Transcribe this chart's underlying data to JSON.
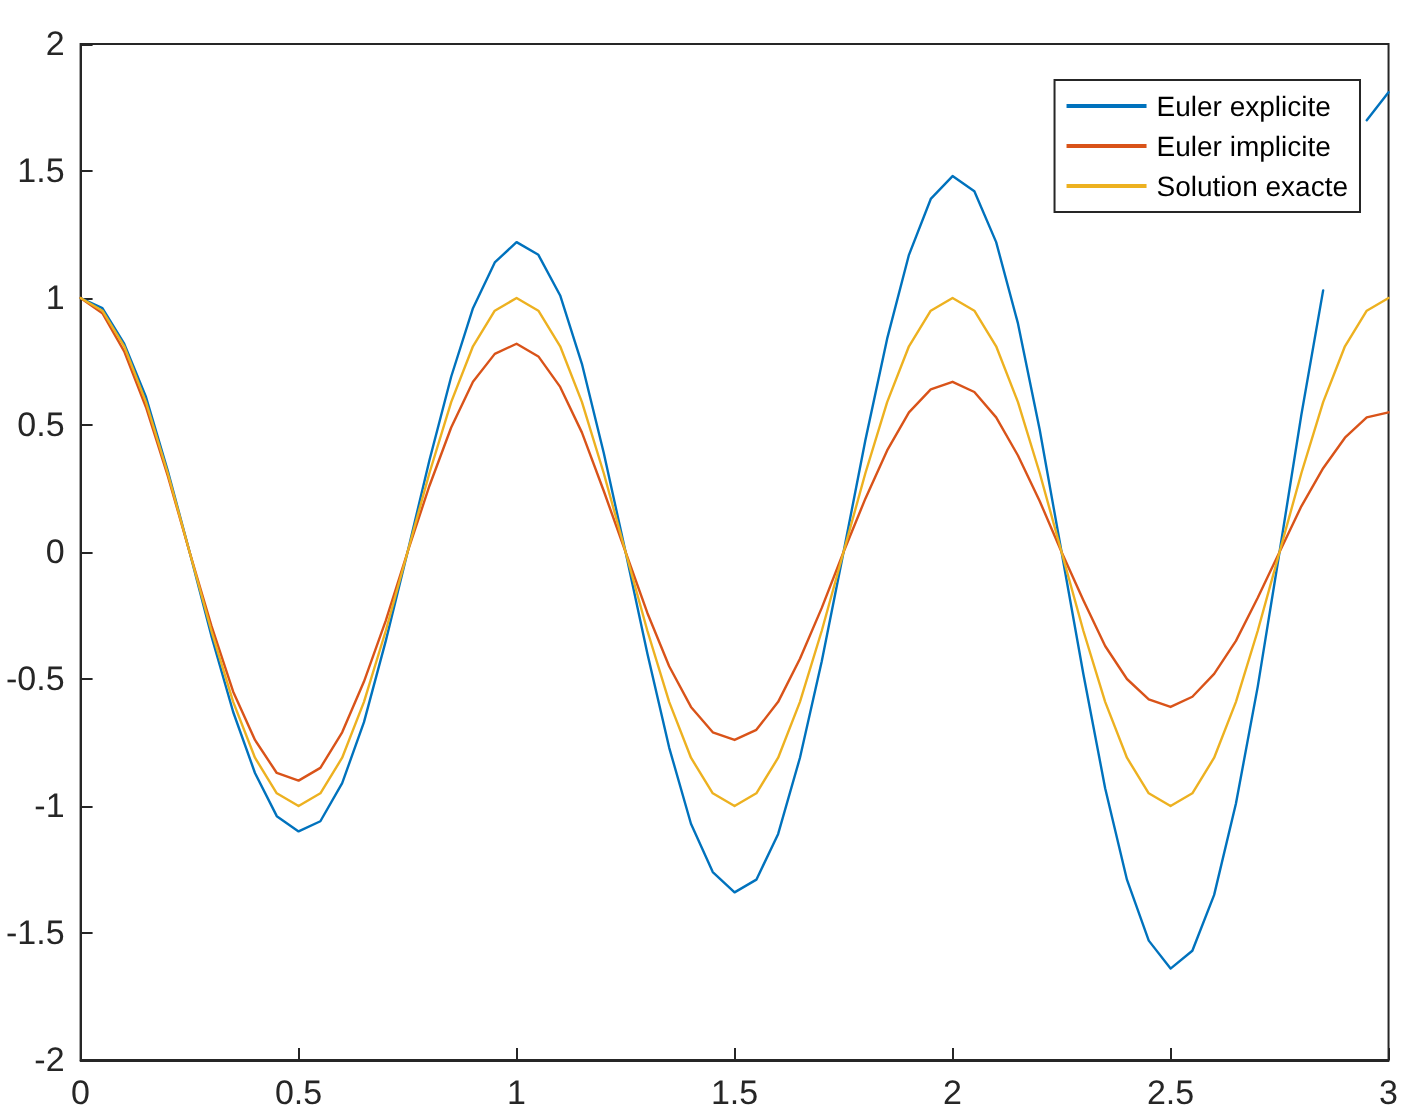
{
  "chart_data": {
    "type": "line",
    "x": [
      0,
      0.05,
      0.1,
      0.15,
      0.2,
      0.25,
      0.3,
      0.35,
      0.4,
      0.45,
      0.5,
      0.55,
      0.6,
      0.65,
      0.7,
      0.75,
      0.8,
      0.85,
      0.9,
      0.95,
      1,
      1.05,
      1.1,
      1.15,
      1.2,
      1.25,
      1.3,
      1.35,
      1.4,
      1.45,
      1.5,
      1.55,
      1.6,
      1.65,
      1.7,
      1.75,
      1.8,
      1.85,
      1.9,
      1.95,
      2,
      2.05,
      2.1,
      2.15,
      2.2,
      2.25,
      2.3,
      2.35,
      2.4,
      2.45,
      2.5,
      2.55,
      2.6,
      2.65,
      2.7,
      2.75,
      2.8,
      2.85,
      2.9,
      2.95,
      3
    ],
    "series": [
      {
        "name": "Euler explicite",
        "color": "#0072bd",
        "values": [
          1,
          0.96,
          0.82,
          0.61,
          0.32,
          0,
          -0.33,
          -0.63,
          -0.87,
          -1.04,
          -1.1,
          -1.06,
          -0.91,
          -0.67,
          -0.35,
          0,
          0.36,
          0.69,
          0.96,
          1.14,
          1.22,
          1.17,
          1.01,
          0.74,
          0.39,
          0,
          -0.4,
          -0.77,
          -1.07,
          -1.26,
          -1.34,
          -1.29,
          -1.11,
          -0.81,
          -0.43,
          0,
          0.44,
          0.84,
          1.17,
          1.39,
          1.48,
          1.42,
          1.22,
          0.9,
          0.48,
          0,
          -0.48,
          -0.93,
          -1.29,
          -1.53,
          -1.64,
          -1.57,
          -1.35,
          -0.99,
          -0.53,
          0,
          0.54,
          1.03,
          null,
          1.7,
          1.81
        ]
      },
      {
        "name": "Euler implicite",
        "color": "#d95319",
        "values": [
          1,
          0.94,
          0.79,
          0.57,
          0.3,
          0,
          -0.29,
          -0.55,
          -0.74,
          -0.87,
          -0.9,
          -0.85,
          -0.71,
          -0.51,
          -0.27,
          0,
          0.26,
          0.49,
          0.67,
          0.78,
          0.82,
          0.77,
          0.65,
          0.47,
          0.24,
          0,
          -0.24,
          -0.45,
          -0.61,
          -0.71,
          -0.74,
          -0.7,
          -0.59,
          -0.42,
          -0.22,
          0,
          0.21,
          0.4,
          0.55,
          0.64,
          0.67,
          0.63,
          0.53,
          0.38,
          0.2,
          0,
          -0.19,
          -0.37,
          -0.5,
          -0.58,
          -0.61,
          -0.57,
          -0.48,
          -0.35,
          -0.18,
          0,
          0.18,
          0.33,
          0.45,
          0.53,
          0.55
        ]
      },
      {
        "name": "Solution exacte",
        "color": "#edb120",
        "values": [
          1,
          0.95,
          0.81,
          0.59,
          0.31,
          0,
          -0.31,
          -0.59,
          -0.81,
          -0.95,
          -1,
          -0.95,
          -0.81,
          -0.59,
          -0.31,
          0,
          0.31,
          0.59,
          0.81,
          0.95,
          1,
          0.95,
          0.81,
          0.59,
          0.31,
          0,
          -0.31,
          -0.59,
          -0.81,
          -0.95,
          -1,
          -0.95,
          -0.81,
          -0.59,
          -0.31,
          0,
          0.31,
          0.59,
          0.81,
          0.95,
          1,
          0.95,
          0.81,
          0.59,
          0.31,
          0,
          -0.31,
          -0.59,
          -0.81,
          -0.95,
          -1,
          -0.95,
          -0.81,
          -0.59,
          -0.31,
          0,
          0.31,
          0.59,
          0.81,
          0.95,
          1
        ]
      }
    ],
    "xlim": [
      0,
      3
    ],
    "xticks": [
      0,
      0.5,
      1,
      1.5,
      2,
      2.5,
      3
    ],
    "ylim": [
      -2,
      2
    ],
    "yticks": [
      -2,
      -1.5,
      -1,
      -0.5,
      0,
      0.5,
      1,
      1.5,
      2
    ],
    "grid": false,
    "legend": "top right",
    "marker": "none",
    "line_style": "solid"
  }
}
